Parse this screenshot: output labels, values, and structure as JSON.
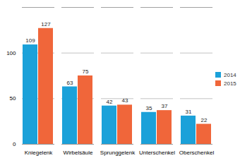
{
  "chart_data": {
    "type": "bar",
    "categories": [
      "Kniegelenk",
      "Wirbelsäule",
      "Sprunggelenk",
      "Unterschenkel",
      "Oberschenkel"
    ],
    "series": [
      {
        "name": "2014",
        "color": "#1ba1d9",
        "values": [
          109,
          63,
          42,
          35,
          31
        ]
      },
      {
        "name": "2015",
        "color": "#f0663a",
        "values": [
          127,
          75,
          43,
          37,
          22
        ]
      }
    ],
    "ylim": [
      0,
      150
    ],
    "yticks": [
      0,
      50,
      100
    ],
    "grid": true,
    "data_labels": true,
    "legend": "right"
  }
}
